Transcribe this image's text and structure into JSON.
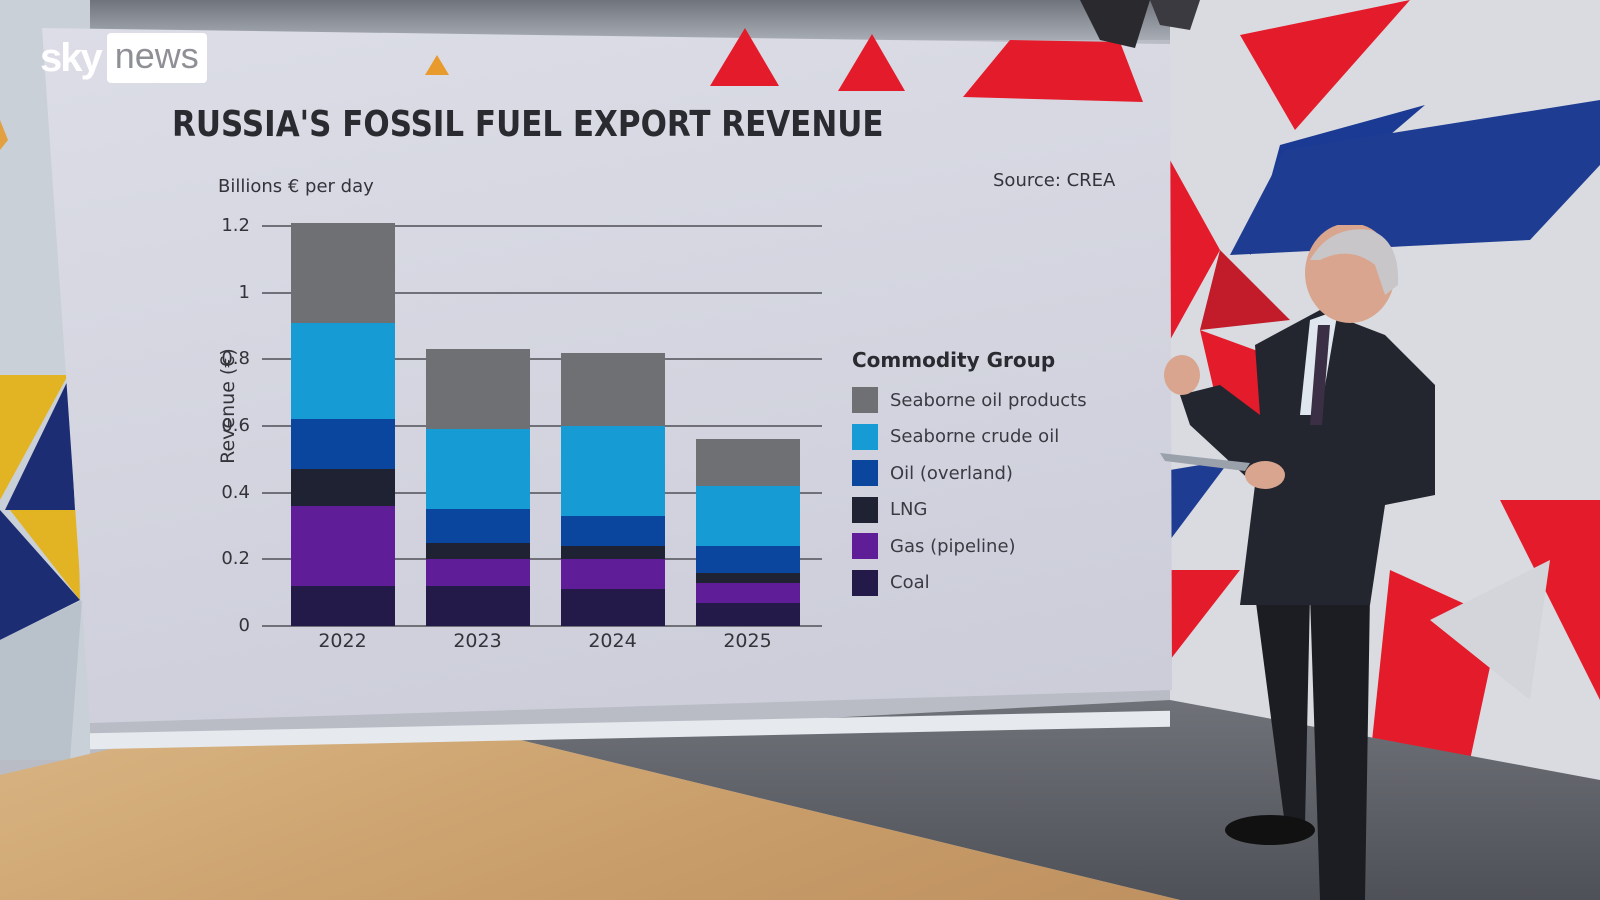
{
  "broadcaster": {
    "logo_sky": "sky",
    "logo_news": "news"
  },
  "chart": {
    "title": "RUSSIA'S FOSSIL FUEL EXPORT REVENUE",
    "subtitle": "Billions € per day",
    "source": "Source: CREA",
    "y_axis_label": "Revenue (€)",
    "y_ticks": [
      "0",
      "0.2",
      "0.4",
      "0.6",
      "0.8",
      "1",
      "1.2"
    ],
    "x_ticks": [
      "2022",
      "2023",
      "2024",
      "2025"
    ],
    "legend_title": "Commodity Group",
    "legend": [
      {
        "label": "Seaborne oil products",
        "color": "#6f7074"
      },
      {
        "label": "Seaborne crude oil",
        "color": "#169bd5"
      },
      {
        "label": "Oil (overland)",
        "color": "#0b469e"
      },
      {
        "label": "LNG",
        "color": "#1f2233"
      },
      {
        "label": "Gas (pipeline)",
        "color": "#5f1d97"
      },
      {
        "label": "Coal",
        "color": "#241a4a"
      }
    ]
  },
  "chart_data": {
    "type": "bar",
    "stacked": true,
    "title": "Russia's Fossil Fuel Export Revenue",
    "subtitle": "Billions € per day",
    "source": "Source: CREA",
    "xlabel": "",
    "ylabel": "Revenue (€)",
    "ylim": [
      0,
      1.2
    ],
    "yticks": [
      0,
      0.2,
      0.4,
      0.6,
      0.8,
      1,
      1.2
    ],
    "grid": true,
    "legend_title": "Commodity Group",
    "legend_position": "right",
    "categories": [
      "2022",
      "2023",
      "2024",
      "2025"
    ],
    "series": [
      {
        "name": "Coal",
        "color": "#241a4a",
        "values": [
          0.12,
          0.12,
          0.11,
          0.07
        ]
      },
      {
        "name": "Gas (pipeline)",
        "color": "#5f1d97",
        "values": [
          0.24,
          0.08,
          0.09,
          0.06
        ]
      },
      {
        "name": "LNG",
        "color": "#1f2233",
        "values": [
          0.11,
          0.05,
          0.04,
          0.03
        ]
      },
      {
        "name": "Oil (overland)",
        "color": "#0b469e",
        "values": [
          0.15,
          0.1,
          0.09,
          0.08
        ]
      },
      {
        "name": "Seaborne crude oil",
        "color": "#169bd5",
        "values": [
          0.29,
          0.24,
          0.27,
          0.18
        ]
      },
      {
        "name": "Seaborne oil products",
        "color": "#6f7074",
        "values": [
          0.3,
          0.24,
          0.22,
          0.14
        ]
      }
    ],
    "totals": [
      1.21,
      0.83,
      0.82,
      0.56
    ]
  }
}
